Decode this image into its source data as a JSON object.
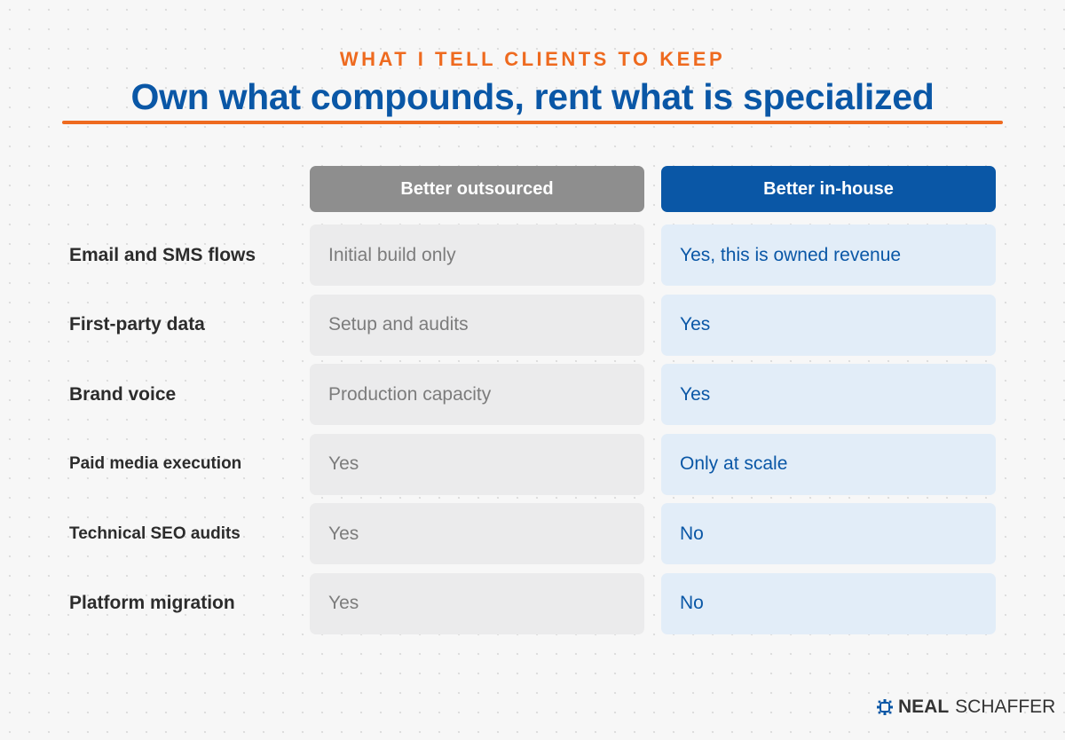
{
  "header": {
    "eyebrow": "WHAT I TELL CLIENTS TO KEEP",
    "title": "Own what compounds, rent what is specialized"
  },
  "columns": {
    "outsourced": "Better outsourced",
    "inhouse": "Better in-house"
  },
  "rows": [
    {
      "label": "Email and SMS flows",
      "outsourced": "Initial build only",
      "inhouse": "Yes, this is owned revenue"
    },
    {
      "label": "First-party data",
      "outsourced": "Setup and audits",
      "inhouse": "Yes"
    },
    {
      "label": "Brand voice",
      "outsourced": "Production capacity",
      "inhouse": "Yes"
    },
    {
      "label": "Paid media execution",
      "outsourced": "Yes",
      "inhouse": "Only at scale"
    },
    {
      "label": "Technical SEO audits",
      "outsourced": "Yes",
      "inhouse": "No"
    },
    {
      "label": "Platform migration",
      "outsourced": "Yes",
      "inhouse": "No"
    }
  ],
  "logo": {
    "icon": "gear-chip-icon",
    "bold": "NEAL",
    "light": "SCHAFFER"
  },
  "colors": {
    "accent_orange": "#ee6a1f",
    "brand_blue": "#0a57a6",
    "header_gray": "#8e8e8e",
    "cell_gray": "#ebebec",
    "cell_blue": "#e2edf8"
  }
}
